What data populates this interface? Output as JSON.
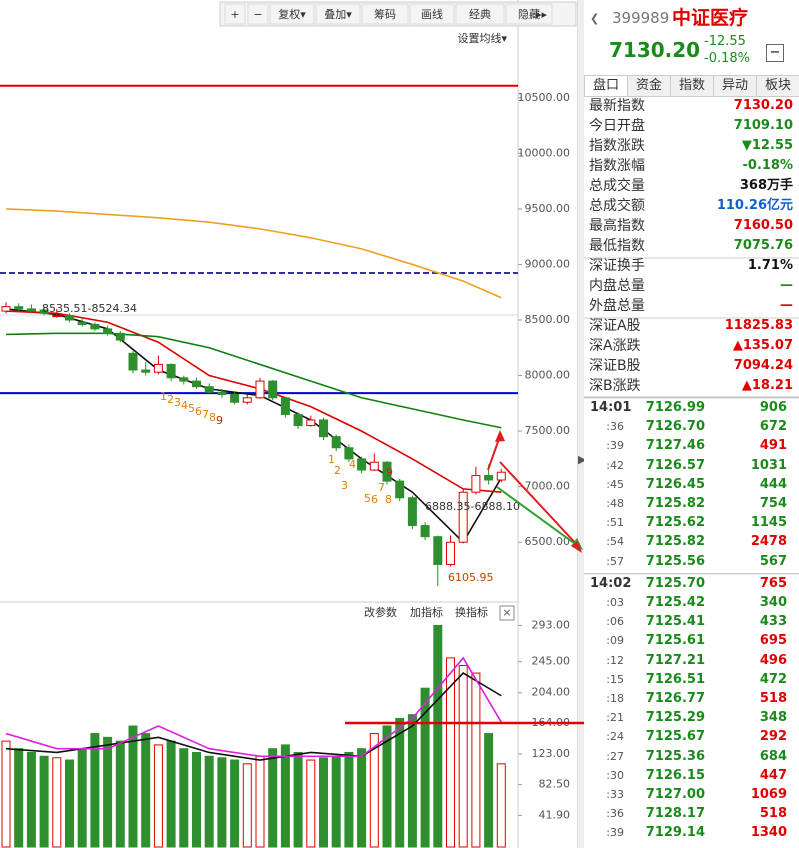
{
  "toolbar": {
    "items": [
      "+",
      "−",
      "复权▾",
      "叠加▾",
      "筹码",
      "画线",
      "经典",
      "隐藏"
    ],
    "settings": "设置均线▾"
  },
  "chart_data": [
    {
      "type": "candlestick",
      "ohlc": [
        [
          8580,
          8660,
          8560,
          8620
        ],
        [
          8620,
          8650,
          8580,
          8600
        ],
        [
          8600,
          8640,
          8560,
          8580
        ],
        [
          8590,
          8620,
          8540,
          8560
        ],
        [
          8540,
          8600,
          8520,
          8540
        ],
        [
          8540,
          8560,
          8480,
          8500
        ],
        [
          8480,
          8520,
          8440,
          8460
        ],
        [
          8460,
          8480,
          8400,
          8420
        ],
        [
          8420,
          8450,
          8360,
          8380
        ],
        [
          8380,
          8400,
          8300,
          8320
        ],
        [
          8200,
          8220,
          8020,
          8050
        ],
        [
          8050,
          8120,
          8000,
          8030
        ],
        [
          8030,
          8180,
          8010,
          8100
        ],
        [
          8100,
          8110,
          7950,
          7980
        ],
        [
          7980,
          8000,
          7920,
          7950
        ],
        [
          7950,
          7980,
          7880,
          7900
        ],
        [
          7900,
          7930,
          7830,
          7850
        ],
        [
          7850,
          7880,
          7800,
          7830
        ],
        [
          7830,
          7850,
          7740,
          7760
        ],
        [
          7760,
          7830,
          7740,
          7800
        ],
        [
          7800,
          7980,
          7790,
          7950
        ],
        [
          7950,
          7960,
          7780,
          7800
        ],
        [
          7800,
          7810,
          7620,
          7650
        ],
        [
          7650,
          7670,
          7520,
          7550
        ],
        [
          7550,
          7640,
          7540,
          7600
        ],
        [
          7600,
          7620,
          7420,
          7450
        ],
        [
          7450,
          7470,
          7320,
          7350
        ],
        [
          7350,
          7380,
          7220,
          7250
        ],
        [
          7250,
          7270,
          7120,
          7150
        ],
        [
          7150,
          7300,
          7140,
          7220
        ],
        [
          7220,
          7230,
          7020,
          7050
        ],
        [
          7050,
          7070,
          6870,
          6900
        ],
        [
          6900,
          6920,
          6620,
          6650
        ],
        [
          6650,
          6680,
          6520,
          6550
        ],
        [
          6550,
          6560,
          6106,
          6300
        ],
        [
          6300,
          6560,
          6280,
          6500
        ],
        [
          6500,
          6980,
          6490,
          6950
        ],
        [
          6950,
          7180,
          6930,
          7100
        ],
        [
          7100,
          7200,
          7020,
          7060
        ],
        [
          7060,
          7160,
          7040,
          7130
        ]
      ],
      "up_color": "#e00000",
      "down_color": "#2f8f2f",
      "ma_x": [
        0,
        4,
        8,
        12,
        16,
        20,
        24,
        28,
        32,
        36,
        39
      ],
      "series": [
        {
          "color": "#111111",
          "values": [
            8600,
            8550,
            8420,
            8050,
            7880,
            7820,
            7600,
            7250,
            6950,
            6500,
            7080
          ]
        },
        {
          "color": "#dd0000",
          "values": [
            8580,
            8560,
            8480,
            8300,
            8000,
            7880,
            7720,
            7500,
            7250,
            6980,
            6950
          ]
        },
        {
          "color": "#108010",
          "values": [
            8370,
            8380,
            8380,
            8350,
            8250,
            8100,
            7950,
            7800,
            7700,
            7600,
            7530
          ]
        },
        {
          "color": "#f0a020",
          "values": [
            9500,
            9480,
            9450,
            9420,
            9380,
            9320,
            9240,
            9140,
            9000,
            8850,
            8700
          ]
        }
      ],
      "hlines": [
        {
          "value": 10608,
          "color": "#dd0000"
        },
        {
          "value": 8923,
          "color": "#3030a0",
          "dashed": true
        },
        {
          "value": 7842,
          "color": "#0000dd"
        }
      ],
      "ylim": [
        5980,
        11380
      ],
      "yticks": [
        {
          "value": 10500,
          "label": "10500.00"
        },
        {
          "value": 10000,
          "label": "10000.00"
        },
        {
          "value": 9500,
          "label": "9500.00"
        },
        {
          "value": 9000,
          "label": "9000.00"
        },
        {
          "value": 8500,
          "label": "8500.00"
        },
        {
          "value": 8000,
          "label": "8000.00"
        },
        {
          "value": 7500,
          "label": "7500.00"
        },
        {
          "value": 7000,
          "label": "7000.00"
        },
        {
          "value": 6500,
          "label": "6500.00"
        }
      ],
      "annotations": [
        "8535.51-8524.34",
        "6888.35-6888.10",
        "6105.95"
      ],
      "td_1": [
        "1",
        "2",
        "3",
        "4",
        "5",
        "6",
        "7",
        "8",
        "9"
      ],
      "td_2": [
        "1",
        "2",
        "3",
        "4",
        "5",
        "6",
        "7",
        "8",
        "9"
      ]
    },
    {
      "type": "bar",
      "buttons": [
        "改参数",
        "加指标",
        "换指标"
      ],
      "values": [
        140,
        130,
        125,
        120,
        118,
        115,
        130,
        150,
        145,
        140,
        160,
        150,
        135,
        140,
        130,
        125,
        120,
        118,
        115,
        110,
        120,
        130,
        135,
        125,
        115,
        118,
        120,
        125,
        130,
        150,
        160,
        170,
        175,
        210,
        293,
        250,
        240,
        230,
        150,
        110
      ],
      "ma_x": [
        0,
        4,
        8,
        12,
        16,
        20,
        24,
        28,
        32,
        36,
        39
      ],
      "series": [
        {
          "color": "#111111",
          "values": [
            130,
            125,
            135,
            145,
            125,
            115,
            125,
            120,
            160,
            230,
            200
          ]
        },
        {
          "color": "#e020e0",
          "values": [
            150,
            130,
            130,
            160,
            130,
            120,
            120,
            120,
            170,
            250,
            165
          ]
        }
      ],
      "hline": 164,
      "ylim": [
        0,
        320
      ],
      "yticks": [
        {
          "value": 293,
          "label": "293.00"
        },
        {
          "value": 245,
          "label": "245.00"
        },
        {
          "value": 204,
          "label": "204.00"
        },
        {
          "value": 164,
          "label": "164.00"
        },
        {
          "value": 123,
          "label": "123.00"
        },
        {
          "value": 82.5,
          "label": "82.50"
        },
        {
          "value": 41.9,
          "label": "41.90"
        }
      ]
    }
  ],
  "quote": {
    "code": "399989",
    "name": "中证医疗",
    "price": "7130.20",
    "change": "-12.55",
    "change_pct": "-0.18%",
    "collapse": "−"
  },
  "tabs": [
    "盘口",
    "资金",
    "指数",
    "异动",
    "板块"
  ],
  "info": [
    [
      [
        "最新指数",
        "7130.20",
        "#e00000"
      ],
      [
        "今日开盘",
        "7109.10",
        "#1a8a1a"
      ],
      [
        "指数涨跌",
        "▼12.55",
        "#1a8a1a"
      ],
      [
        "指数涨幅",
        "-0.18%",
        "#1a8a1a"
      ],
      [
        "总成交量",
        "368万手",
        "#111111"
      ],
      [
        "总成交额",
        "110.26亿元",
        "#1060d0"
      ],
      [
        "最高指数",
        "7160.50",
        "#e00000"
      ],
      [
        "最低指数",
        "7075.76",
        "#1a8a1a"
      ]
    ],
    [
      [
        "深证换手",
        "1.71%",
        "#111111"
      ],
      [
        "内盘总量",
        "—",
        "#1a8a1a"
      ],
      [
        "外盘总量",
        "—",
        "#e00000"
      ]
    ],
    [
      [
        "深证A股",
        "11825.83",
        "#e00000"
      ],
      [
        "深A涨跌",
        "▲135.07",
        "#e00000"
      ],
      [
        "深证B股",
        "7094.24",
        "#e00000"
      ],
      [
        "深B涨跌",
        "▲18.21",
        "#e00000"
      ]
    ]
  ],
  "ticks": [
    [
      "14:01",
      "7126.99",
      "906",
      "#1a8a1a"
    ],
    [
      ":36",
      "7126.70",
      "672",
      "#1a8a1a"
    ],
    [
      ":39",
      "7127.46",
      "491",
      "#e00000"
    ],
    [
      ":42",
      "7126.57",
      "1031",
      "#1a8a1a"
    ],
    [
      ":45",
      "7126.45",
      "444",
      "#1a8a1a"
    ],
    [
      ":48",
      "7125.82",
      "754",
      "#1a8a1a"
    ],
    [
      ":51",
      "7125.62",
      "1145",
      "#1a8a1a"
    ],
    [
      ":54",
      "7125.82",
      "2478",
      "#e00000"
    ],
    [
      ":57",
      "7125.56",
      "567",
      "#1a8a1a"
    ],
    [
      "14:02",
      "7125.70",
      "765",
      "#e00000"
    ],
    [
      ":03",
      "7125.42",
      "340",
      "#1a8a1a"
    ],
    [
      ":06",
      "7125.41",
      "433",
      "#1a8a1a"
    ],
    [
      ":09",
      "7125.61",
      "695",
      "#e00000"
    ],
    [
      ":12",
      "7127.21",
      "496",
      "#e00000"
    ],
    [
      ":15",
      "7126.51",
      "472",
      "#1a8a1a"
    ],
    [
      ":18",
      "7126.77",
      "518",
      "#e00000"
    ],
    [
      ":21",
      "7125.29",
      "348",
      "#1a8a1a"
    ],
    [
      ":24",
      "7125.67",
      "292",
      "#e00000"
    ],
    [
      ":27",
      "7125.36",
      "684",
      "#1a8a1a"
    ],
    [
      ":30",
      "7126.15",
      "447",
      "#e00000"
    ],
    [
      ":33",
      "7127.00",
      "1069",
      "#e00000"
    ],
    [
      ":36",
      "7128.17",
      "518",
      "#e00000"
    ],
    [
      ":39",
      "7129.14",
      "1340",
      "#e00000"
    ]
  ]
}
